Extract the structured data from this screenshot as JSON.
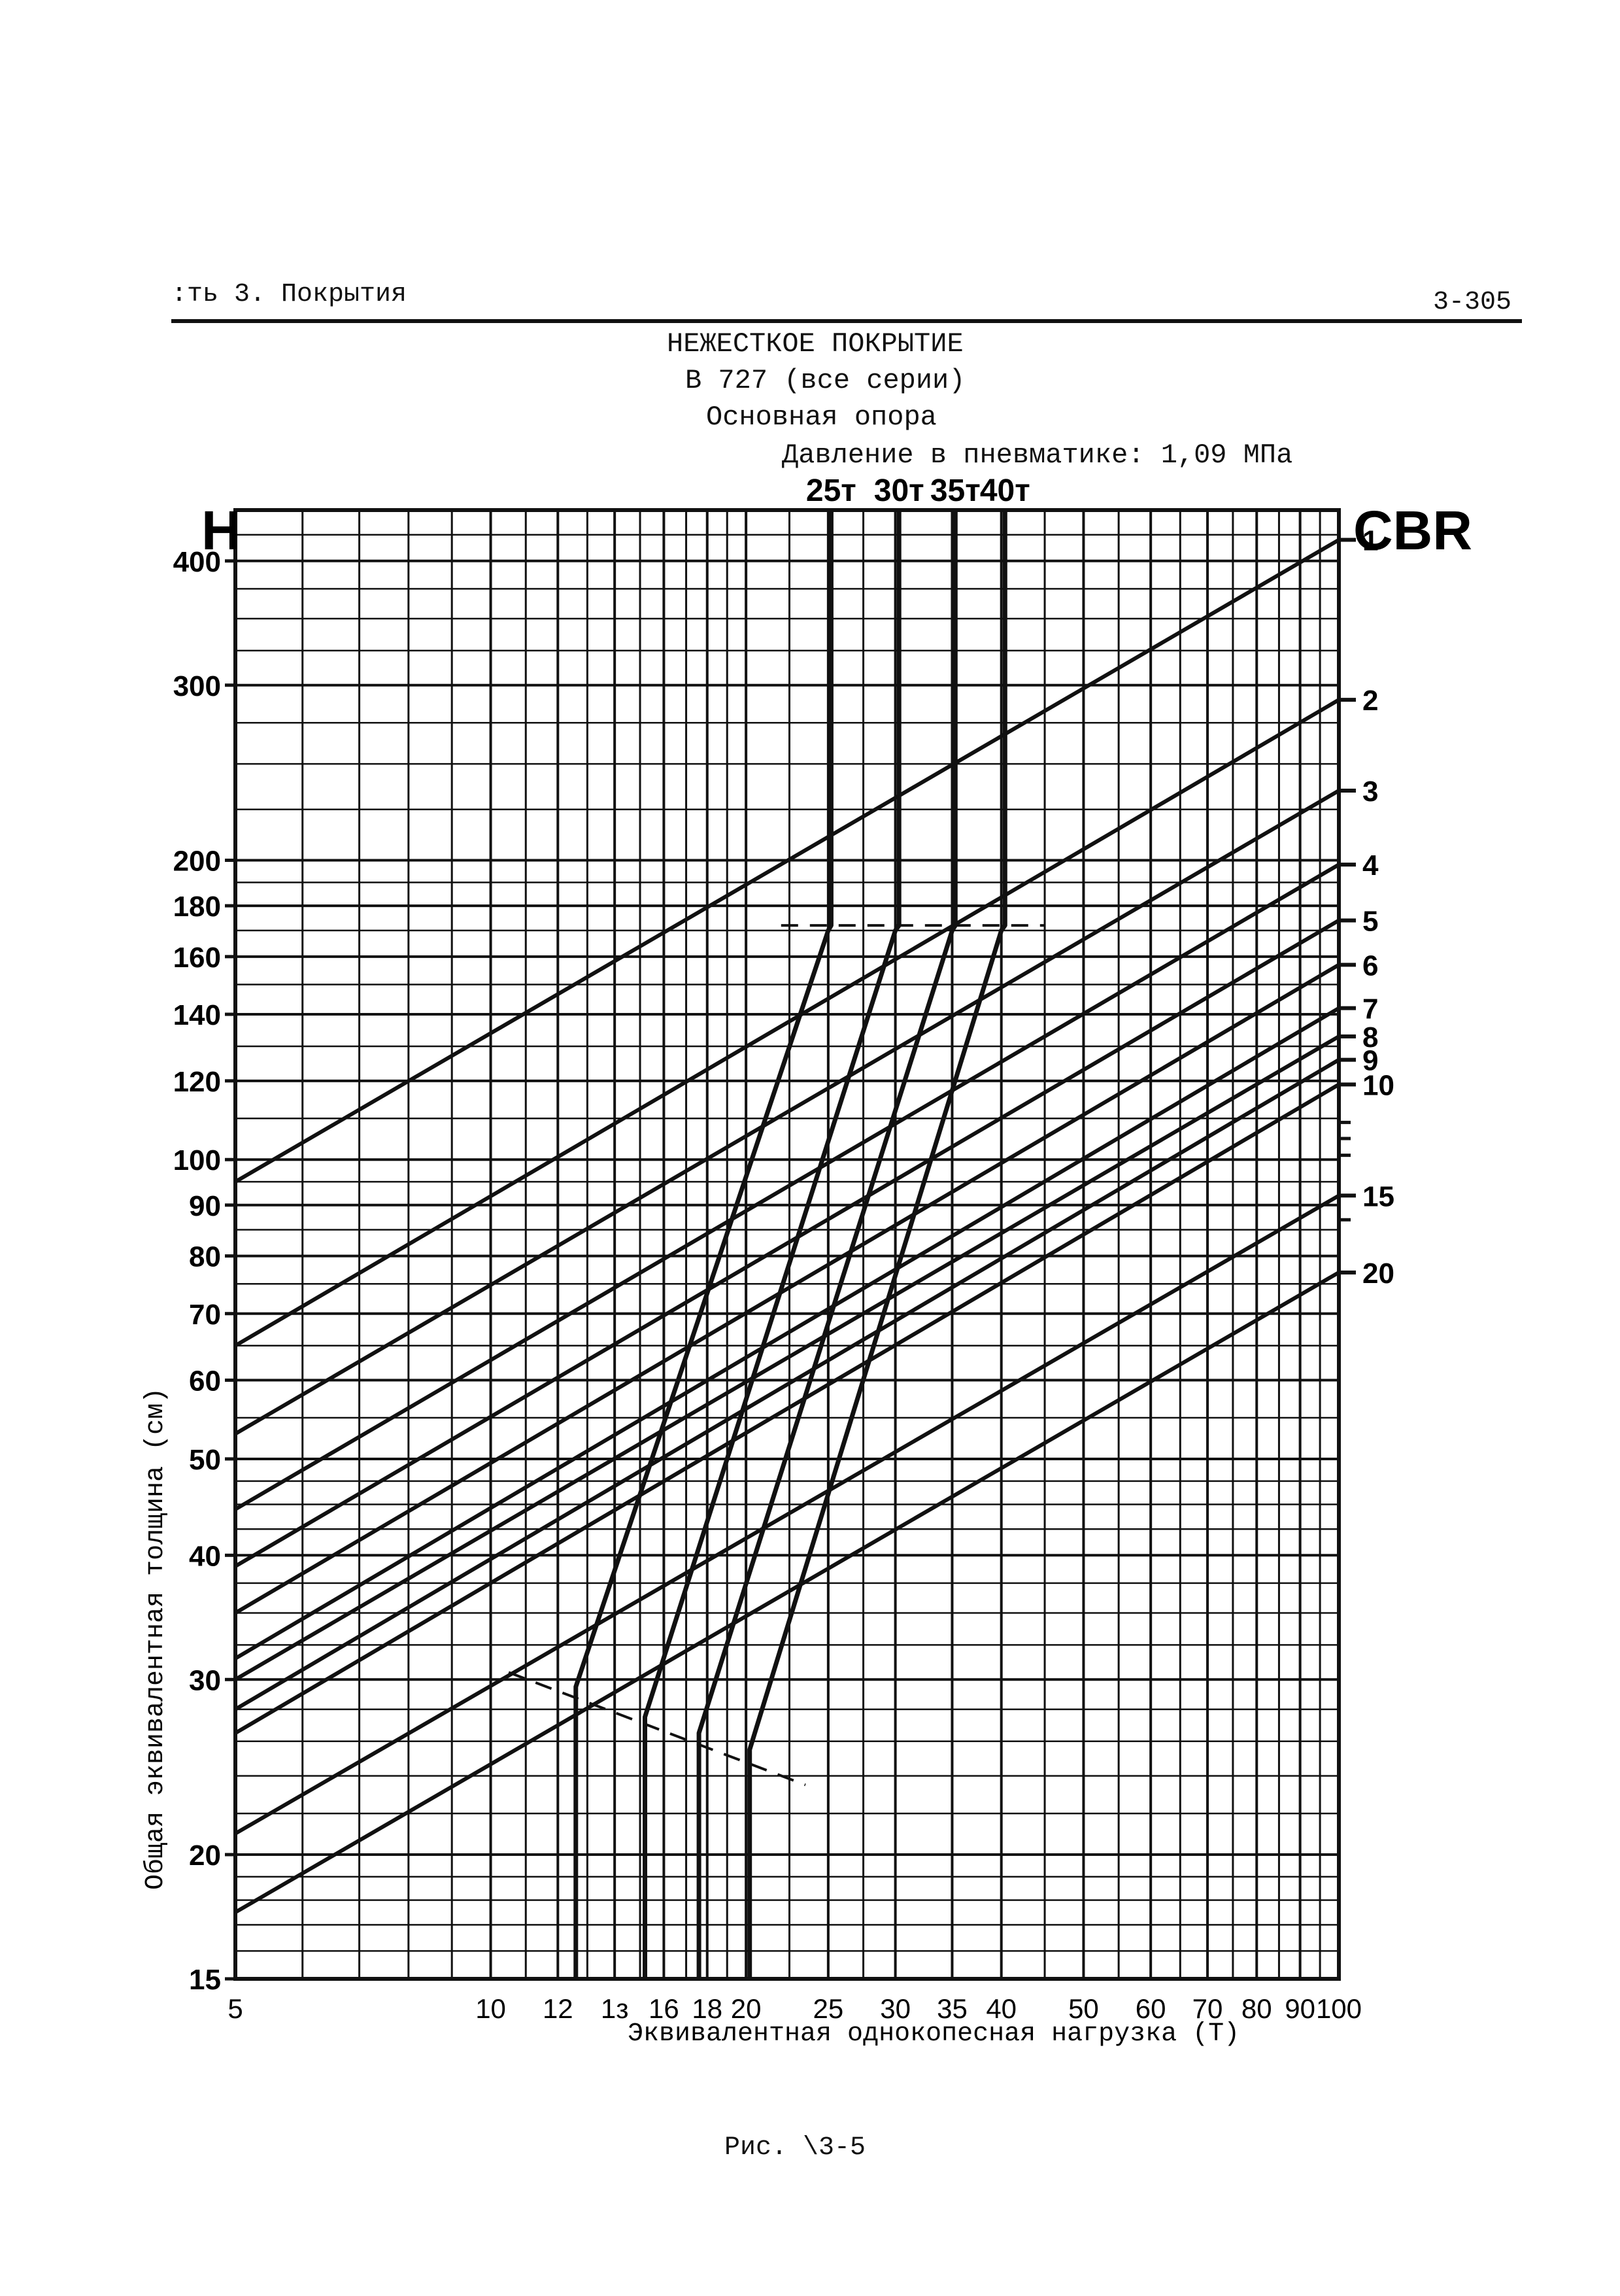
{
  "header": {
    "section": ":ть 3. Покрытия",
    "page_number": "3-305"
  },
  "title_lines": [
    "НЕЖЕСТКОЕ ПОКРЫТИЕ",
    "В 727 (все серии)",
    "Основная опора",
    "Давление в пневматике: 1,09 МПа"
  ],
  "caption": "Рис. \\3-5",
  "chart_data": {
    "type": "line",
    "x_scale": "log",
    "y_scale": "log",
    "xlim": [
      5,
      100
    ],
    "ylim": [
      15,
      450
    ],
    "xlabel": "Эквивалентная однокопесная нагрузка (Т)",
    "ylabel": "Общая эквивалентная толщина (см)",
    "y_axis_letter": "H",
    "right_axis_letter": "CBR",
    "x_ticks": [
      5,
      10,
      12,
      14,
      16,
      18,
      20,
      25,
      30,
      35,
      40,
      50,
      60,
      70,
      80,
      90,
      100
    ],
    "x_tick_labels": [
      "5",
      "10",
      "12",
      "1з",
      "16",
      "18",
      "20",
      "25",
      "30",
      "35",
      "40",
      "50",
      "60",
      "70",
      "80",
      "90",
      "100"
    ],
    "y_ticks": [
      15,
      20,
      30,
      40,
      50,
      60,
      70,
      80,
      90,
      100,
      120,
      140,
      160,
      180,
      200,
      300,
      400
    ],
    "y_tick_labels": [
      "15",
      "20",
      "30",
      "40",
      "50",
      "60",
      "70",
      "80",
      "90",
      "100",
      "120",
      "140",
      "160",
      "180",
      "200",
      "300",
      "400"
    ],
    "cbr_lines": [
      {
        "label": "1",
        "y_at_x5": 95,
        "y_at_x100": 420
      },
      {
        "label": "2",
        "y_at_x5": 65,
        "y_at_x100": 290
      },
      {
        "label": "3",
        "y_at_x5": 53,
        "y_at_x100": 235
      },
      {
        "label": "4",
        "y_at_x5": 44.5,
        "y_at_x100": 198
      },
      {
        "label": "5",
        "y_at_x5": 39,
        "y_at_x100": 174
      },
      {
        "label": "6",
        "y_at_x5": 35,
        "y_at_x100": 157
      },
      {
        "label": "7",
        "y_at_x5": 31.5,
        "y_at_x100": 142
      },
      {
        "label": "8",
        "y_at_x5": 30,
        "y_at_x100": 133
      },
      {
        "label": "9",
        "y_at_x5": 28,
        "y_at_x100": 126
      },
      {
        "label": "10",
        "y_at_x5": 26.5,
        "y_at_x100": 119
      },
      {
        "label": "15",
        "y_at_x5": 21,
        "y_at_x100": 92
      },
      {
        "label": "20",
        "y_at_x5": 17.5,
        "y_at_x100": 77
      }
    ],
    "right_ticks_extra": [
      109,
      105,
      101,
      87
    ],
    "load_curves": [
      {
        "label": "25т",
        "points": [
          [
            12.6,
            15
          ],
          [
            12.6,
            29.5
          ],
          [
            25,
            170
          ],
          [
            25.2,
            172
          ],
          [
            25.2,
            450
          ]
        ]
      },
      {
        "label": "30т",
        "points": [
          [
            15.2,
            15
          ],
          [
            15.2,
            27.5
          ],
          [
            30,
            170
          ],
          [
            30.3,
            172
          ],
          [
            30.3,
            450
          ]
        ]
      },
      {
        "label": "35т",
        "points": [
          [
            17.6,
            15
          ],
          [
            17.6,
            26.5
          ],
          [
            35,
            170
          ],
          [
            35.3,
            172
          ],
          [
            35.3,
            450
          ]
        ]
      },
      {
        "label": "40т",
        "points": [
          [
            20.2,
            15
          ],
          [
            20.2,
            25.5
          ],
          [
            40,
            170
          ],
          [
            40.4,
            172
          ],
          [
            40.4,
            450
          ]
        ]
      }
    ],
    "reference_lines": [
      {
        "style": "dashed",
        "points": [
          [
            22,
            172
          ],
          [
            45,
            172
          ]
        ]
      },
      {
        "style": "dashed",
        "points": [
          [
            10.5,
            30.5
          ],
          [
            23.5,
            23.5
          ]
        ]
      }
    ],
    "load_labels": [
      {
        "x": 25.2,
        "text": "25т"
      },
      {
        "x": 30.3,
        "text": "30т"
      },
      {
        "x": 35.3,
        "text": "35т"
      },
      {
        "x": 40.4,
        "text": "40т"
      }
    ],
    "grid": true
  }
}
